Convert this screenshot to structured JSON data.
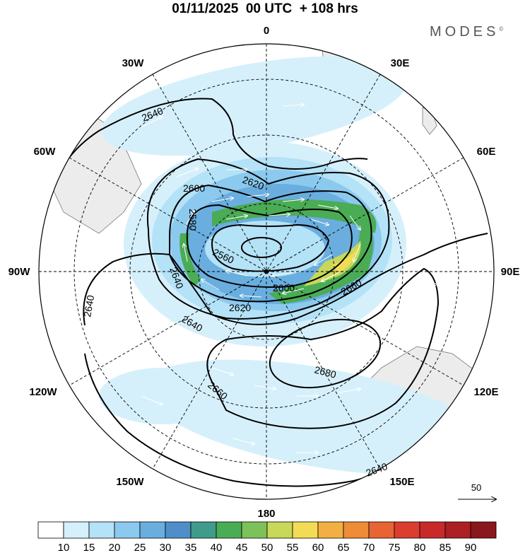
{
  "header": {
    "title": "01/11/2025  00 UTC  + 108 hrs",
    "brand": "MODES",
    "brand_mark": "©"
  },
  "map": {
    "projection": "south polar stereographic",
    "longitude_labels": [
      "0",
      "30E",
      "60E",
      "90E",
      "120E",
      "150E",
      "180",
      "150W",
      "120W",
      "90W",
      "60W",
      "30W"
    ],
    "contour_labels": [
      "2640",
      "2620",
      "2600",
      "2580",
      "2560",
      "2600",
      "2620",
      "2640",
      "2640",
      "2660",
      "2680",
      "2660",
      "2640",
      "2640"
    ],
    "reference_vector_label": "50",
    "land_color": "#ececec",
    "coast_color": "#777777"
  },
  "colorbar": {
    "ticks": [
      "10",
      "15",
      "20",
      "25",
      "30",
      "35",
      "40",
      "45",
      "50",
      "55",
      "60",
      "65",
      "70",
      "75",
      "80",
      "85",
      "90"
    ],
    "colors": [
      "#ffffff",
      "#d6f0fb",
      "#b4e2f7",
      "#8cc9ee",
      "#6aaedf",
      "#4f8fc9",
      "#3f9c8a",
      "#4aac55",
      "#7dc15a",
      "#c8d858",
      "#f3dc55",
      "#f2b044",
      "#ef8c38",
      "#e86434",
      "#db3e2f",
      "#c82a2a",
      "#ac1f25",
      "#8a171c"
    ]
  }
}
